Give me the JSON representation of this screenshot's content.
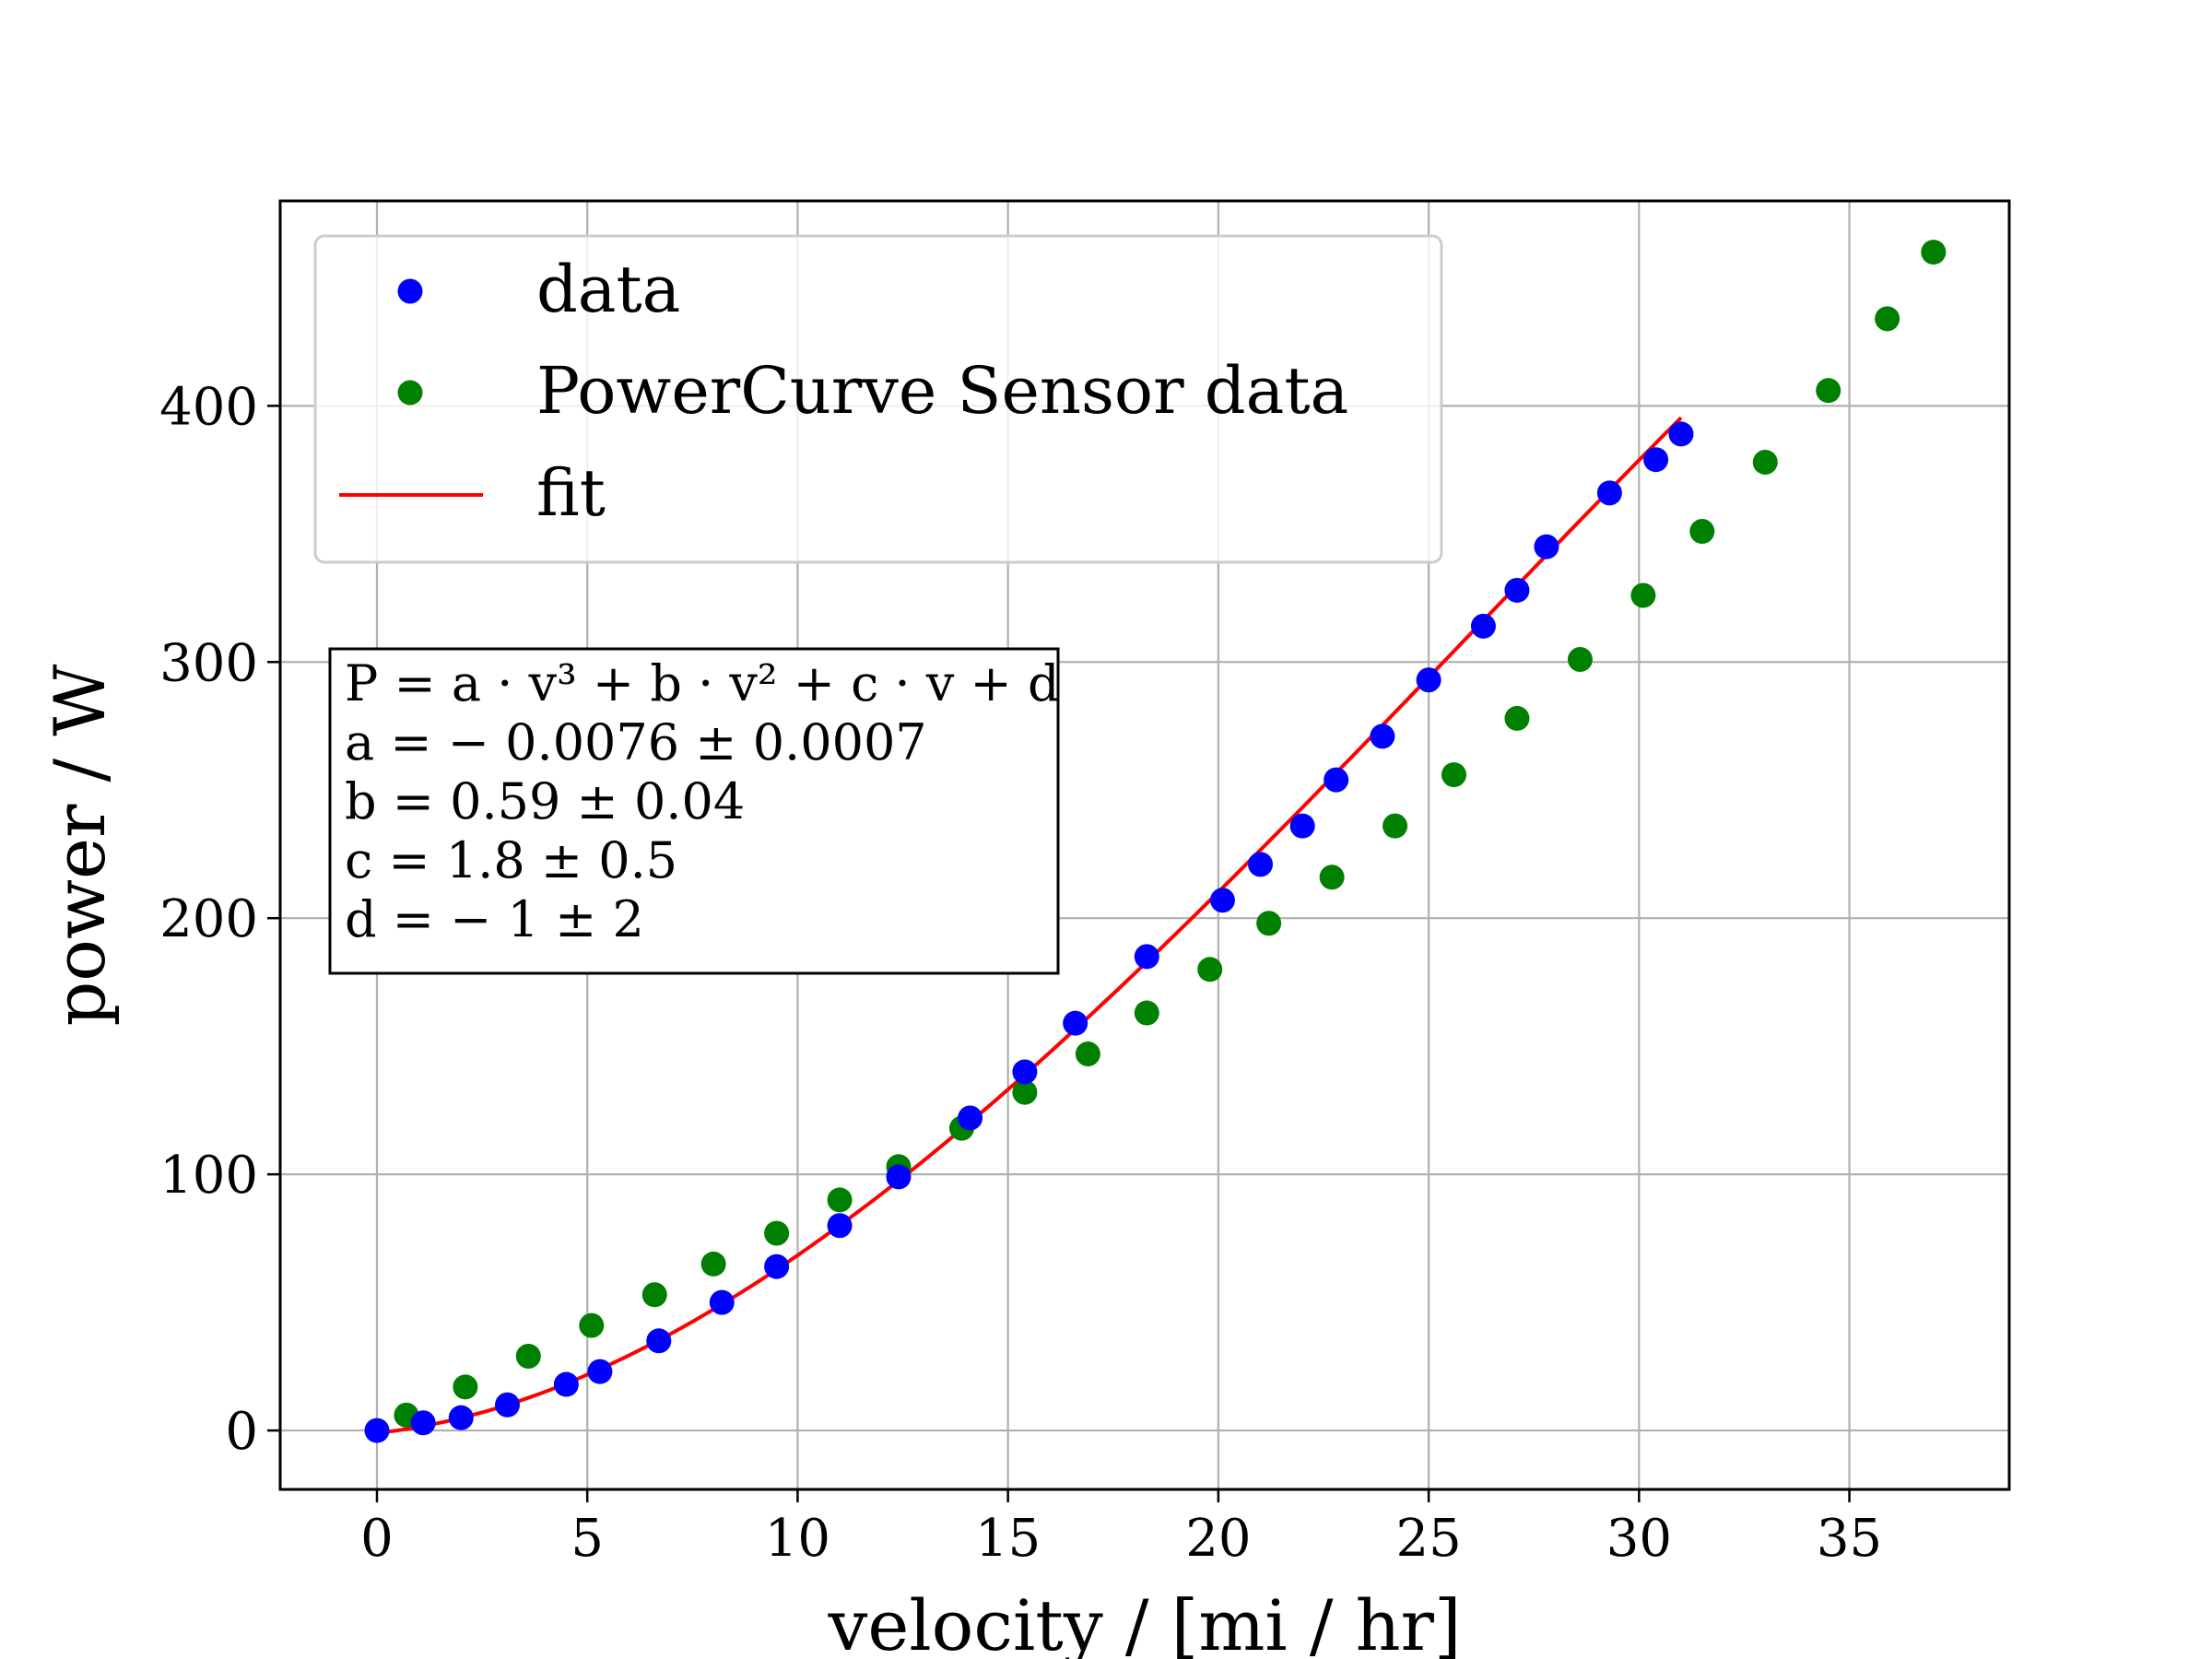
{
  "chart_data": {
    "type": "scatter",
    "xlabel": "velocity / [mi / hr]",
    "ylabel": "power / W",
    "xlim": [
      -2.3,
      38.8
    ],
    "ylim": [
      -23,
      480
    ],
    "xticks": [
      0,
      5,
      10,
      15,
      20,
      25,
      30,
      35
    ],
    "yticks": [
      0,
      100,
      200,
      300,
      400
    ],
    "grid": true,
    "legend_position": "upper-left",
    "series": [
      {
        "name": "data",
        "kind": "markers",
        "color": "#0000ff",
        "points": [
          [
            0.0,
            0
          ],
          [
            1.1,
            3
          ],
          [
            2.0,
            5
          ],
          [
            3.1,
            10
          ],
          [
            4.5,
            18
          ],
          [
            5.3,
            23
          ],
          [
            6.7,
            35
          ],
          [
            8.2,
            50
          ],
          [
            9.5,
            64
          ],
          [
            11.0,
            80
          ],
          [
            12.4,
            99
          ],
          [
            14.1,
            122
          ],
          [
            15.4,
            140
          ],
          [
            16.6,
            159
          ],
          [
            18.3,
            185
          ],
          [
            20.1,
            207
          ],
          [
            21.0,
            221
          ],
          [
            22.0,
            236
          ],
          [
            22.8,
            254
          ],
          [
            23.9,
            271
          ],
          [
            25.0,
            293
          ],
          [
            26.3,
            314
          ],
          [
            27.1,
            328
          ],
          [
            27.8,
            345
          ],
          [
            29.3,
            366
          ],
          [
            30.4,
            379
          ],
          [
            31.0,
            389
          ]
        ]
      },
      {
        "name": "PowerCurve Sensor data",
        "kind": "markers",
        "color": "#008000",
        "points": [
          [
            0.7,
            6
          ],
          [
            2.1,
            17
          ],
          [
            3.6,
            29
          ],
          [
            5.1,
            41
          ],
          [
            6.6,
            53
          ],
          [
            8.0,
            65
          ],
          [
            9.5,
            77
          ],
          [
            11.0,
            90
          ],
          [
            12.4,
            103
          ],
          [
            13.9,
            118
          ],
          [
            15.4,
            132
          ],
          [
            16.9,
            147
          ],
          [
            18.3,
            163
          ],
          [
            19.8,
            180
          ],
          [
            21.2,
            198
          ],
          [
            22.7,
            216
          ],
          [
            24.2,
            236
          ],
          [
            25.6,
            256
          ],
          [
            27.1,
            278
          ],
          [
            28.6,
            301
          ],
          [
            30.1,
            326
          ],
          [
            31.5,
            351
          ],
          [
            33.0,
            378
          ],
          [
            34.5,
            406
          ],
          [
            35.9,
            434
          ],
          [
            37.0,
            460
          ]
        ]
      },
      {
        "name": "fit",
        "kind": "line",
        "color": "#ff0000",
        "model": "cubic",
        "coefficients": {
          "a": -0.0076,
          "b": 0.59,
          "c": 1.8,
          "d": -1
        },
        "x_range": [
          0,
          31
        ]
      }
    ],
    "annotation": {
      "lines": [
        "P = a · v³ + b · v² + c · v + d",
        "a = − 0.0076 ± 0.0007",
        "b = 0.59 ± 0.04",
        "c = 1.8 ± 0.5",
        "d = − 1 ± 2"
      ]
    }
  }
}
